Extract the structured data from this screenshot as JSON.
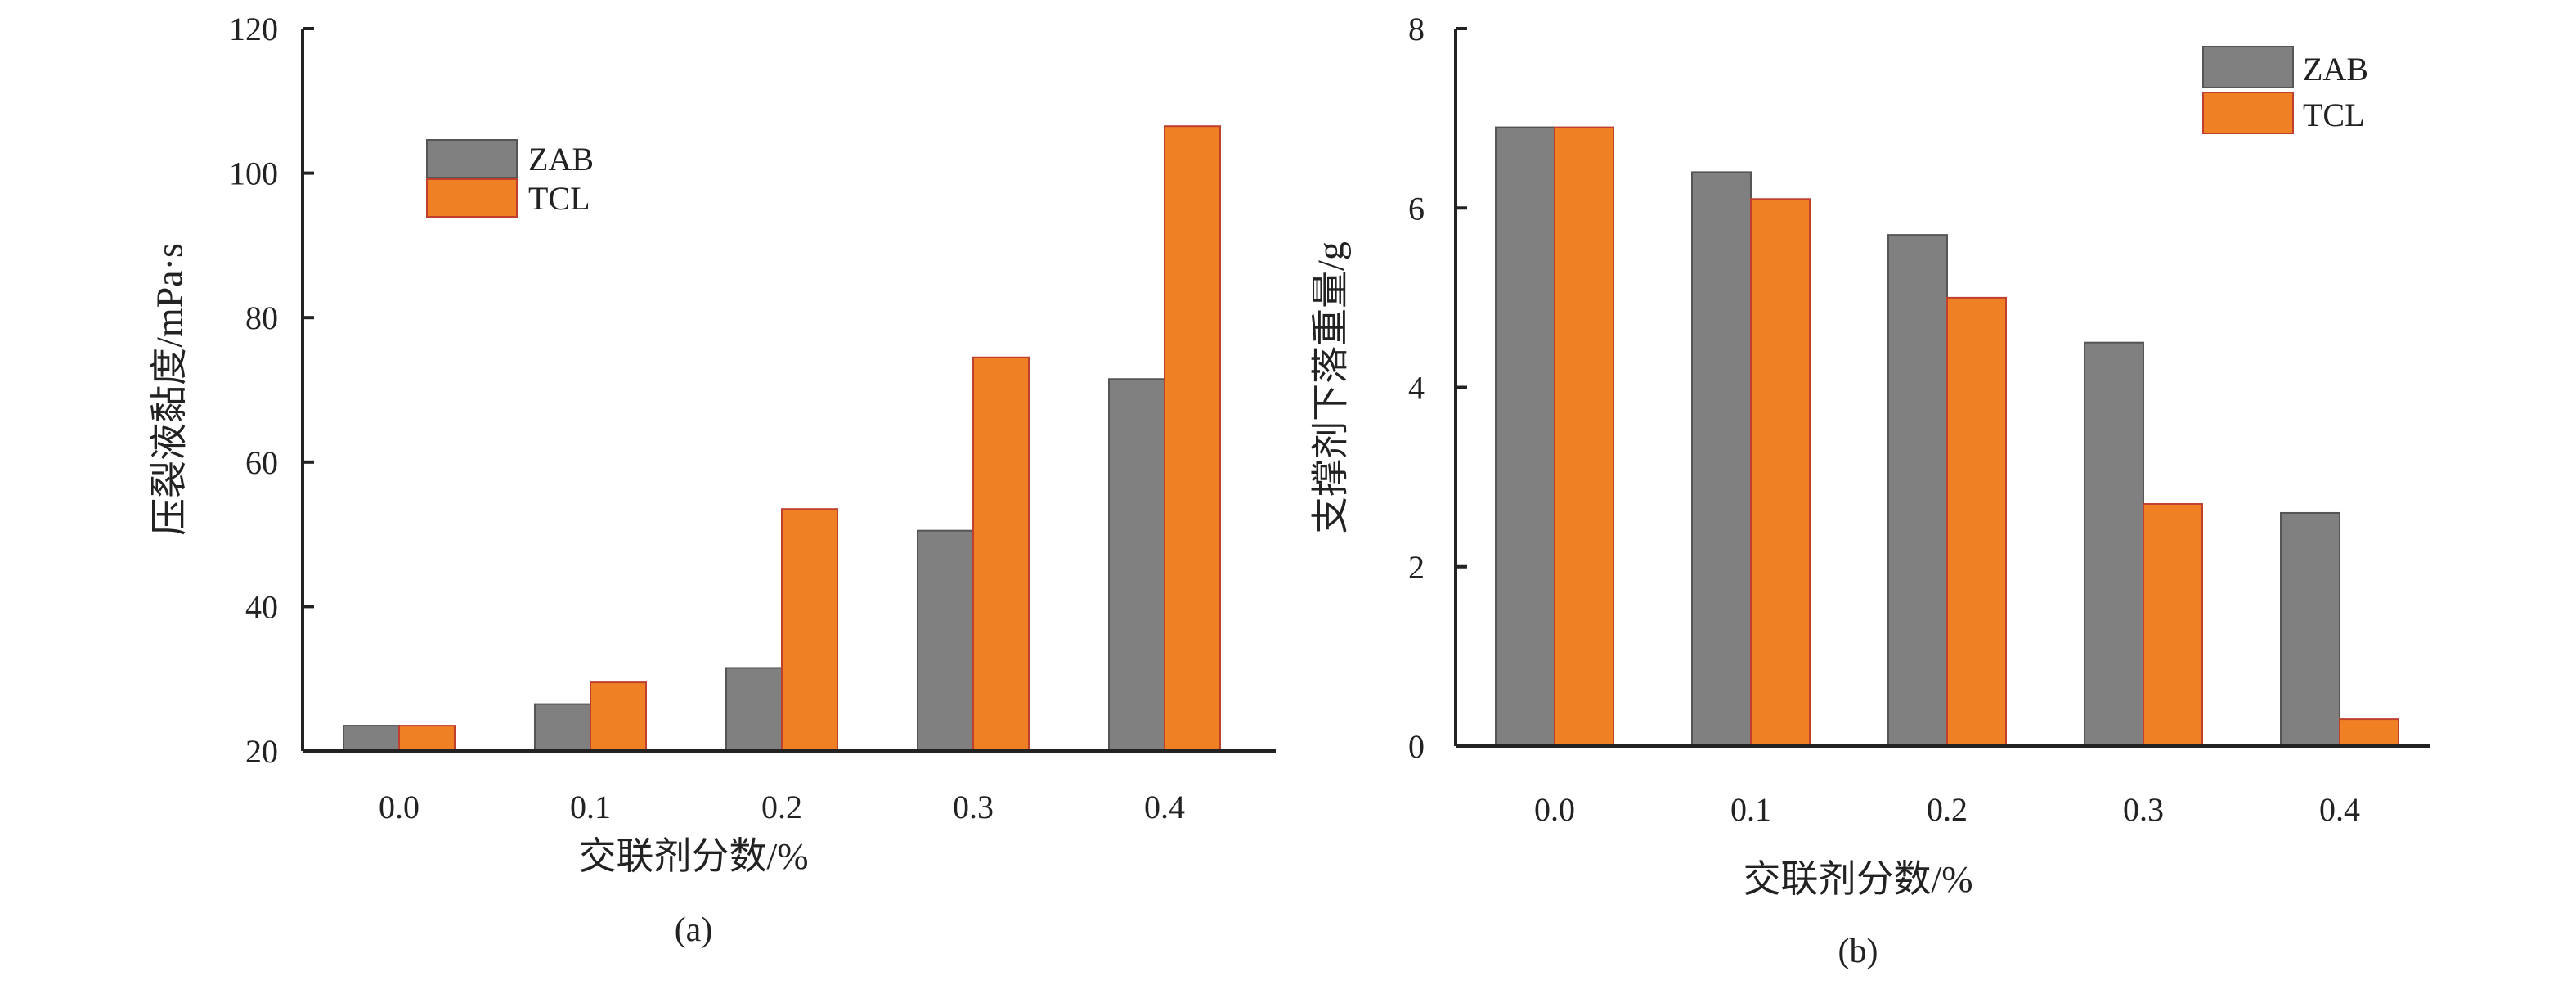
{
  "chart_data": [
    {
      "type": "bar",
      "panel_label": "(a)",
      "xlabel": "交联剂分数/%",
      "ylabel": "压裂液黏度/mPa·s",
      "categories": [
        "0.0",
        "0.1",
        "0.2",
        "0.3",
        "0.4"
      ],
      "ylim": [
        20,
        120
      ],
      "yticks": [
        "20",
        "40",
        "60",
        "80",
        "100",
        "120"
      ],
      "legend_position": "upper-left",
      "grid": false,
      "series": [
        {
          "name": "ZAB",
          "color": "#808080",
          "values": [
            23.5,
            26.5,
            31.5,
            50.5,
            71.5
          ]
        },
        {
          "name": "TCL",
          "color": "#F08024",
          "values": [
            23.5,
            29.5,
            53.5,
            74.5,
            106.5
          ]
        }
      ]
    },
    {
      "type": "bar",
      "panel_label": "(b)",
      "xlabel": "交联剂分数/%",
      "ylabel": "支撑剂下落重量/g",
      "categories": [
        "0.0",
        "0.1",
        "0.2",
        "0.3",
        "0.4"
      ],
      "ylim": [
        0,
        8
      ],
      "yticks": [
        "0",
        "2",
        "4",
        "6",
        "8"
      ],
      "legend_position": "top-right",
      "grid": false,
      "series": [
        {
          "name": "ZAB",
          "color": "#808080",
          "values": [
            6.9,
            6.4,
            5.7,
            4.5,
            2.6
          ]
        },
        {
          "name": "TCL",
          "color": "#F08024",
          "values": [
            6.9,
            6.1,
            5.0,
            2.7,
            0.3
          ]
        }
      ]
    }
  ]
}
